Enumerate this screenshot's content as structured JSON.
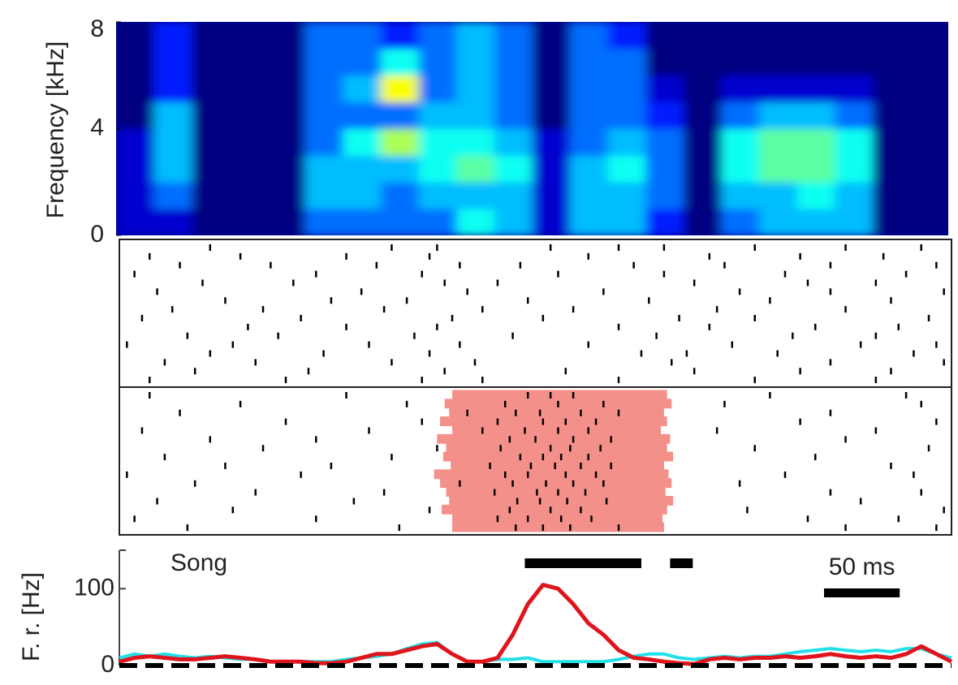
{
  "chart_data": [
    {
      "type": "spectrogram",
      "y_label": "Frequency [kHz]",
      "ylim": [
        0,
        8
      ],
      "yticks": [
        0,
        4,
        8
      ],
      "xbins": [
        0,
        25,
        50,
        75,
        100,
        125,
        150,
        175,
        200,
        225,
        250,
        275,
        300,
        325,
        350,
        375,
        400,
        425,
        450,
        475,
        500,
        525,
        550
      ],
      "ybins": [
        0,
        1,
        2,
        3,
        4,
        5,
        6,
        7,
        8
      ],
      "z": [
        [
          1,
          1,
          0,
          0,
          0,
          3,
          3,
          3,
          3,
          5,
          4,
          1,
          4,
          4,
          2,
          0,
          3,
          4,
          4,
          4,
          0,
          0
        ],
        [
          1,
          3,
          0,
          0,
          0,
          4,
          4,
          3,
          4,
          4,
          4,
          1,
          4,
          4,
          3,
          0,
          4,
          4,
          5,
          4,
          0,
          0
        ],
        [
          1,
          4,
          0,
          0,
          0,
          4,
          4,
          4,
          5,
          6,
          5,
          1,
          4,
          5,
          3,
          0,
          5,
          6,
          6,
          5,
          0,
          0
        ],
        [
          1,
          4,
          0,
          0,
          0,
          3,
          5,
          7,
          5,
          5,
          4,
          1,
          3,
          4,
          3,
          0,
          5,
          6,
          6,
          5,
          0,
          0
        ],
        [
          0,
          4,
          0,
          0,
          0,
          3,
          3,
          3,
          4,
          4,
          3,
          0,
          3,
          3,
          2,
          0,
          3,
          4,
          4,
          3,
          0,
          0
        ],
        [
          0,
          2,
          0,
          0,
          0,
          3,
          4,
          8,
          3,
          4,
          3,
          0,
          3,
          3,
          1,
          0,
          1,
          1,
          1,
          1,
          0,
          0
        ],
        [
          0,
          2,
          0,
          0,
          0,
          3,
          3,
          5,
          3,
          4,
          3,
          0,
          3,
          3,
          0,
          0,
          0,
          0,
          0,
          0,
          0,
          0
        ],
        [
          0,
          2,
          0,
          0,
          0,
          3,
          3,
          2,
          3,
          4,
          3,
          0,
          3,
          2,
          0,
          0,
          0,
          0,
          0,
          0,
          0,
          0
        ]
      ]
    },
    {
      "type": "raster",
      "xlim": [
        0,
        550
      ],
      "shade_color": "#f4908a",
      "blocks": [
        {
          "trials": [
            [
              60,
              180,
              210,
              285,
              330,
              360,
              420,
              480,
              530
            ],
            [
              20,
              80,
              150,
              205,
              310,
              390,
              450,
              505
            ],
            [
              40,
              100,
              170,
              225,
              265,
              340,
              400,
              470,
              540
            ],
            [
              10,
              130,
              200,
              290,
              360,
              440,
              520
            ],
            [
              55,
              115,
              215,
              250,
              380,
              455,
              500
            ],
            [
              25,
              160,
              230,
              320,
              410,
              470,
              545
            ],
            [
              70,
              140,
              190,
              270,
              350,
              430,
              510
            ],
            [
              35,
              95,
              175,
              240,
              300,
              395,
              480
            ],
            [
              15,
              120,
              220,
              280,
              370,
              420,
              535
            ],
            [
              85,
              150,
              210,
              330,
              390,
              460,
              515
            ],
            [
              45,
              105,
              195,
              260,
              355,
              445,
              500
            ],
            [
              5,
              75,
              165,
              225,
              310,
              405,
              490,
              540
            ],
            [
              60,
              135,
              205,
              345,
              375,
              435,
              525
            ],
            [
              30,
              90,
              180,
              235,
              365,
              470,
              545
            ],
            [
              50,
              125,
              215,
              295,
              380,
              450,
              510
            ],
            [
              20,
              110,
              200,
              240,
              330,
              420,
              500
            ]
          ]
        },
        {
          "trials": [
            [
              20,
              150,
              270,
              285,
              300,
              430,
              520
            ],
            [
              80,
              190,
              255,
              290,
              320,
              400,
              530
            ],
            [
              40,
              230,
              262,
              278,
              305,
              330,
              470
            ],
            [
              110,
              200,
              250,
              280,
              295,
              315,
              450,
              540
            ],
            [
              15,
              165,
              240,
              268,
              290,
              310,
              395,
              500
            ],
            [
              60,
              130,
              258,
              275,
              300,
              325,
              480
            ],
            [
              95,
              210,
              252,
              285,
              298,
              318,
              420,
              535
            ],
            [
              30,
              180,
              265,
              280,
              292,
              310,
              460
            ],
            [
              70,
              140,
              245,
              272,
              288,
              305,
              325,
              510
            ],
            [
              5,
              120,
              255,
              270,
              295,
              315,
              440,
              525
            ],
            [
              50,
              225,
              260,
              282,
              300,
              320,
              410
            ],
            [
              90,
              175,
              248,
              276,
              290,
              308,
              470,
              530
            ],
            [
              25,
              155,
              263,
              278,
              296,
              322,
              490
            ],
            [
              75,
              205,
              258,
              285,
              305,
              415,
              545
            ],
            [
              10,
              130,
              250,
              270,
              292,
              312,
              455,
              515
            ],
            [
              45,
              185,
              262,
              280,
              298,
              330,
              480,
              540
            ]
          ],
          "shade": [
            [
              220,
              362
            ],
            [
              215,
              365
            ],
            [
              218,
              360
            ],
            [
              212,
              362
            ],
            [
              220,
              358
            ],
            [
              210,
              364
            ],
            [
              216,
              362
            ],
            [
              214,
              366
            ],
            [
              219,
              360
            ],
            [
              208,
              363
            ],
            [
              212,
              365
            ],
            [
              216,
              361
            ],
            [
              218,
              366
            ],
            [
              213,
              362
            ],
            [
              220,
              359
            ],
            [
              220,
              360
            ]
          ]
        }
      ]
    },
    {
      "type": "line",
      "y_label": "F. r. [Hz]",
      "xlim": [
        0,
        550
      ],
      "ylim": [
        0,
        150
      ],
      "yticks": [
        0,
        100
      ],
      "baseline": 0,
      "x": [
        0,
        10,
        20,
        30,
        40,
        50,
        60,
        70,
        80,
        90,
        100,
        110,
        120,
        130,
        140,
        150,
        160,
        170,
        180,
        190,
        200,
        210,
        220,
        230,
        240,
        250,
        260,
        270,
        280,
        290,
        300,
        310,
        320,
        330,
        340,
        350,
        360,
        370,
        380,
        390,
        400,
        410,
        420,
        430,
        440,
        450,
        460,
        470,
        480,
        490,
        500,
        510,
        520,
        530,
        540,
        550
      ],
      "series": [
        {
          "color": "#21e0e8",
          "values": [
            10,
            15,
            12,
            15,
            12,
            10,
            12,
            10,
            8,
            8,
            5,
            5,
            5,
            5,
            5,
            8,
            10,
            12,
            15,
            22,
            28,
            30,
            15,
            5,
            5,
            8,
            8,
            10,
            5,
            5,
            5,
            5,
            5,
            8,
            12,
            15,
            15,
            10,
            8,
            10,
            12,
            10,
            12,
            12,
            15,
            18,
            20,
            22,
            20,
            18,
            20,
            18,
            22,
            22,
            15,
            10
          ]
        },
        {
          "color": "#e0141c",
          "values": [
            5,
            10,
            12,
            10,
            8,
            8,
            10,
            12,
            10,
            8,
            5,
            5,
            5,
            3,
            3,
            5,
            10,
            15,
            15,
            20,
            25,
            28,
            15,
            5,
            5,
            10,
            40,
            80,
            105,
            100,
            80,
            55,
            40,
            20,
            10,
            8,
            5,
            3,
            2,
            8,
            10,
            8,
            10,
            10,
            12,
            10,
            12,
            15,
            12,
            10,
            12,
            10,
            15,
            25,
            15,
            5
          ]
        }
      ],
      "song": {
        "label": "Song",
        "segments": [
          [
            268,
            345
          ],
          [
            364,
            379
          ]
        ]
      },
      "scale_bar": {
        "label": "50 ms",
        "length": 50
      }
    }
  ]
}
